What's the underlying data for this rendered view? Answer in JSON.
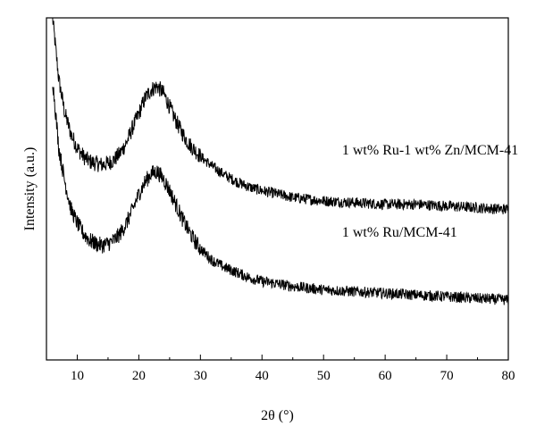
{
  "chart_data": {
    "type": "line",
    "xlabel": "2θ (°)",
    "ylabel": "Intensity (a.u.)",
    "xlim": [
      5,
      80
    ],
    "ylim": [
      0,
      100
    ],
    "xticks": [
      10,
      20,
      30,
      40,
      50,
      60,
      70,
      80
    ],
    "xtick_labels": [
      "10",
      "20",
      "30",
      "40",
      "50",
      "60",
      "70",
      "80"
    ],
    "yticks_shown": false,
    "grid": false,
    "legend": "none",
    "series": [
      {
        "name": "1 wt% Ru-1 wt% Zn/MCM-41",
        "x": [
          6,
          7,
          8,
          9,
          10,
          11,
          12,
          13,
          14,
          15,
          16,
          17,
          18,
          19,
          20,
          21,
          22,
          23,
          24,
          25,
          26,
          27,
          28,
          29,
          30,
          32,
          34,
          36,
          38,
          40,
          45,
          50,
          55,
          60,
          65,
          70,
          75,
          80
        ],
        "values": [
          100,
          82,
          72,
          66,
          62,
          59.5,
          58,
          57.5,
          57,
          57.5,
          58.5,
          60.5,
          63.5,
          68,
          72,
          76.5,
          79,
          80,
          78,
          74,
          70,
          66.5,
          63.5,
          61.5,
          59.5,
          56.5,
          54,
          52,
          50.5,
          49.5,
          47.5,
          46.5,
          46,
          45.5,
          45.5,
          45,
          44.5,
          44
        ]
      },
      {
        "name": "1 wt% Ru/MCM-41",
        "x": [
          6,
          7,
          8,
          9,
          10,
          11,
          12,
          13,
          14,
          15,
          16,
          17,
          18,
          19,
          20,
          21,
          22,
          23,
          24,
          25,
          26,
          27,
          28,
          29,
          30,
          32,
          34,
          36,
          38,
          40,
          45,
          50,
          55,
          60,
          65,
          70,
          75,
          80
        ],
        "values": [
          82,
          62,
          52,
          44,
          40,
          37,
          35,
          34,
          33.5,
          34,
          35,
          37,
          40,
          44,
          48.5,
          52,
          54.5,
          55,
          53,
          49.5,
          45.5,
          41.5,
          38,
          35,
          32.5,
          29,
          27,
          25.5,
          24,
          23,
          21.5,
          20.5,
          20,
          19.5,
          19,
          18.5,
          18,
          17.5
        ]
      }
    ],
    "annotations": [
      {
        "text": "1 wt% Ru-1 wt% Zn/MCM-41",
        "x": 53,
        "y": 60
      },
      {
        "text": "1 wt% Ru/MCM-41",
        "x": 53,
        "y": 36
      }
    ]
  }
}
